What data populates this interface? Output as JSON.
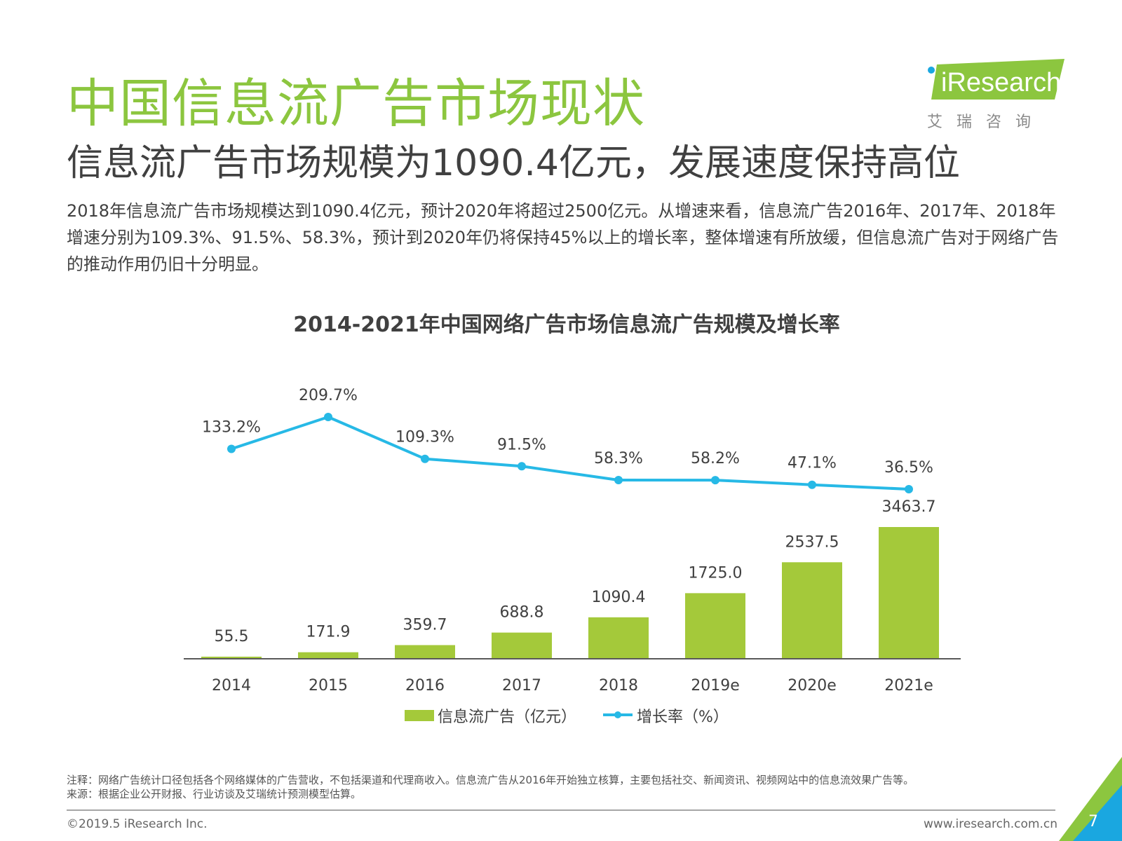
{
  "page": {
    "title": "中国信息流广告市场现状",
    "subtitle": "信息流广告市场规模为1090.4亿元，发展速度保持高位",
    "paragraph": "2018年信息流广告市场规模达到1090.4亿元，预计2020年将超过2500亿元。从增速来看，信息流广告2016年、2017年、2018年增速分别为109.3%、91.5%、58.3%，预计到2020年仍将保持45%以上的增长率，整体增速有所放缓，但信息流广告对于网络广告的推动作用仍旧十分明显。",
    "logo_text": "iResearch",
    "logo_sub": "艾瑞咨询",
    "note": "注释：网络广告统计口径包括各个网络媒体的广告营收，不包括渠道和代理商收入。信息流广告从2016年开始独立核算，主要包括社交、新闻资讯、视频网站中的信息流效果广告等。",
    "source": "来源：根据企业公开财报、行业访谈及艾瑞统计预测模型估算。",
    "copyright": "©2019.5 iResearch Inc.",
    "website": "www.iresearch.com.cn",
    "page_number": "7"
  },
  "colors": {
    "title_green": "#8cc63f",
    "bar_green": "#a4c93a",
    "line_blue": "#27b9e6",
    "corner_blue": "#1aa7e0",
    "corner_green": "#8cc63f"
  },
  "chart_data": {
    "type": "bar",
    "title": "2014-2021年中国网络广告市场信息流广告规模及增长率",
    "categories": [
      "2014",
      "2015",
      "2016",
      "2017",
      "2018",
      "2019e",
      "2020e",
      "2021e"
    ],
    "series": [
      {
        "name": "信息流广告（亿元）",
        "type": "bar",
        "values": [
          55.5,
          171.9,
          359.7,
          688.8,
          1090.4,
          1725.0,
          2537.5,
          3463.7
        ],
        "labels": [
          "55.5",
          "171.9",
          "359.7",
          "688.8",
          "1090.4",
          "1725.0",
          "2537.5",
          "3463.7"
        ]
      },
      {
        "name": "增长率（%）",
        "type": "line",
        "values": [
          133.2,
          209.7,
          109.3,
          91.5,
          58.3,
          58.2,
          47.1,
          36.5
        ],
        "labels": [
          "133.2%",
          "209.7%",
          "109.3%",
          "91.5%",
          "58.3%",
          "58.2%",
          "47.1%",
          "36.5%"
        ]
      }
    ],
    "bar_ylim": [
      0,
      3600
    ],
    "line_ylim": [
      0,
      250
    ],
    "legend_position": "bottom-center",
    "grid": false
  }
}
